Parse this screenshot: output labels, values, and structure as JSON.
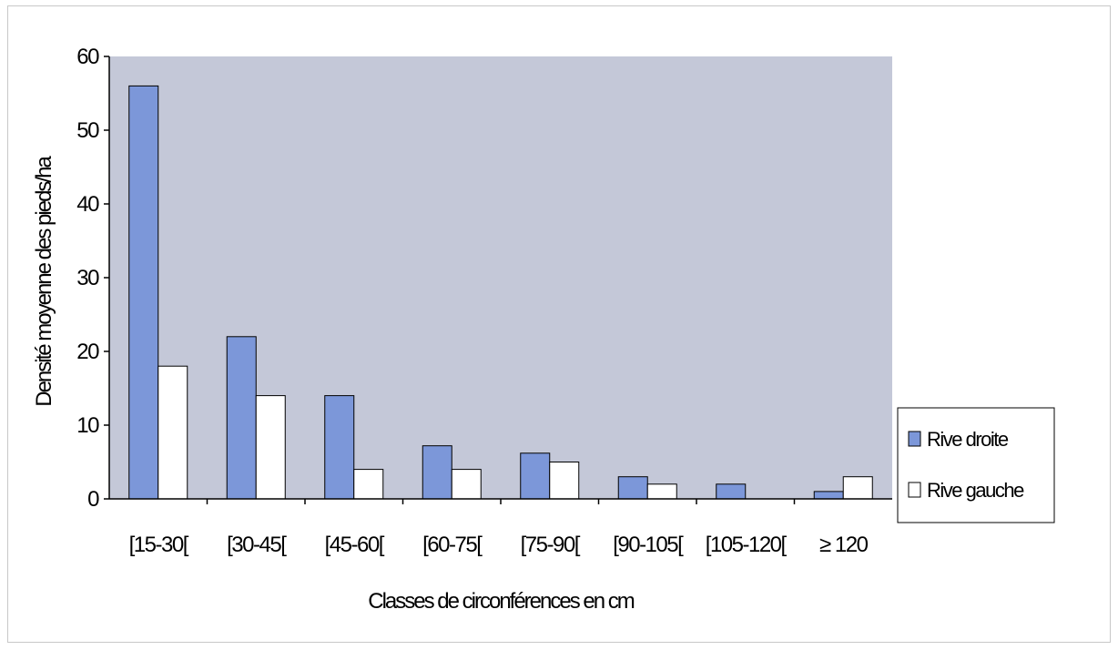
{
  "chart_data": {
    "type": "bar",
    "categories": [
      "[15-30[",
      "[30-45[",
      "[45-60[",
      "[60-75[",
      "[75-90[",
      "[90-105[",
      "[105-120[",
      "≥ 120"
    ],
    "series": [
      {
        "name": "Rive droite",
        "values": [
          56,
          22,
          14,
          7.2,
          6.2,
          3,
          2,
          1
        ],
        "color": "#7c97d9"
      },
      {
        "name": "Rive gauche",
        "values": [
          18,
          14,
          4,
          4,
          5,
          2,
          0,
          3
        ],
        "color": "#ffffff"
      }
    ],
    "yticks": [
      0,
      10,
      20,
      30,
      40,
      50,
      60
    ],
    "ylim": [
      0,
      60
    ],
    "xlabel": "Classes de circonférences en cm",
    "ylabel": "Densité moyenne des pieds/ha",
    "plot_background": "#c4c8d8",
    "grid": false,
    "legend_position": "right"
  }
}
